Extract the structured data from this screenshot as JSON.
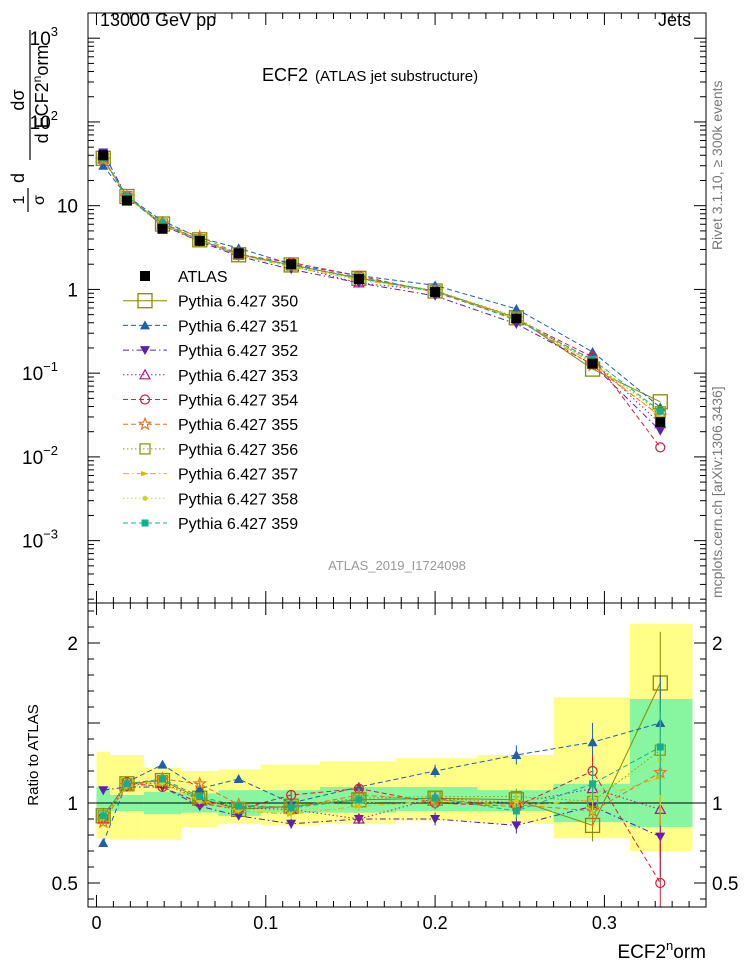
{
  "header": {
    "left": "13000 GeV pp",
    "right": "Jets"
  },
  "side_labels": {
    "rivet": "Rivet 3.1.10, ≥ 300k events",
    "mcplots": "mcplots.cern.ch [arXiv:1306.3436]"
  },
  "chart_data": {
    "type": "scatter",
    "title": "ECF2",
    "subtitle": "(ATLAS jet substructure)",
    "analysis_label": "ATLAS_2019_I1724098",
    "xlabel": "ECF2ⁿorm",
    "ylabel": "1/σ dσ/d ECF2ⁿorm",
    "ratio_ylabel": "Ratio to ATLAS",
    "xlim": [
      -0.005,
      0.36
    ],
    "ylim_main": [
      0.00018,
      2000
    ],
    "ylim_ratio": [
      0.35,
      2.25
    ],
    "yscale_main": "log",
    "x_ticks": [
      "0",
      "0.1",
      "0.2",
      "0.3"
    ],
    "y_ticks_main": [
      "10^-3",
      "10^-2",
      "10^-1",
      "1",
      "10",
      "10^2",
      "10^3"
    ],
    "y_ticks_ratio": [
      "0.5",
      "1",
      "2"
    ],
    "legend_position": "left-middle",
    "bins": [
      [
        0.0,
        0.008
      ],
      [
        0.008,
        0.028
      ],
      [
        0.028,
        0.05
      ],
      [
        0.05,
        0.072
      ],
      [
        0.072,
        0.097
      ],
      [
        0.097,
        0.132
      ],
      [
        0.132,
        0.177
      ],
      [
        0.177,
        0.225
      ],
      [
        0.225,
        0.27
      ],
      [
        0.27,
        0.315
      ],
      [
        0.315,
        0.352
      ]
    ],
    "x": [
      0.004,
      0.018,
      0.039,
      0.061,
      0.084,
      0.115,
      0.155,
      0.2,
      0.248,
      0.293,
      0.333
    ],
    "data": {
      "name": "ATLAS",
      "values": [
        40,
        11.5,
        5.3,
        3.8,
        2.7,
        2.0,
        1.33,
        0.93,
        0.45,
        0.13,
        0.026
      ],
      "ratio_band_inner": [
        [
          0.9,
          1.1
        ],
        [
          0.95,
          1.05
        ],
        [
          0.93,
          1.07
        ],
        [
          0.94,
          1.06
        ],
        [
          0.92,
          1.08
        ],
        [
          0.94,
          1.08
        ],
        [
          0.94,
          1.1
        ],
        [
          0.95,
          1.1
        ],
        [
          0.95,
          1.08
        ],
        [
          0.88,
          1.12
        ],
        [
          0.85,
          1.65
        ]
      ],
      "ratio_band_outer": [
        [
          0.78,
          1.32
        ],
        [
          0.77,
          1.3
        ],
        [
          0.77,
          1.22
        ],
        [
          0.85,
          1.2
        ],
        [
          0.87,
          1.21
        ],
        [
          0.86,
          1.24
        ],
        [
          0.87,
          1.26
        ],
        [
          0.89,
          1.28
        ],
        [
          0.87,
          1.3
        ],
        [
          0.78,
          1.66
        ],
        [
          0.7,
          2.12
        ]
      ]
    },
    "series": [
      {
        "name": "Pythia 6.427 350",
        "color": "#8a8a00",
        "line": "solid",
        "marker": "open-square-large",
        "ratio": [
          0.92,
          1.12,
          1.14,
          1.03,
          0.96,
          0.98,
          1.02,
          1.03,
          1.02,
          0.86,
          1.75
        ],
        "ratio_err": [
          0.05,
          0.03,
          0.03,
          0.03,
          0.03,
          0.03,
          0.03,
          0.04,
          0.05,
          0.1,
          0.32
        ]
      },
      {
        "name": "Pythia 6.427 351",
        "color": "#1f5fb0",
        "line": "dashed",
        "marker": "filled-triangle-up",
        "ratio": [
          0.75,
          1.13,
          1.24,
          1.09,
          1.15,
          1.0,
          1.1,
          1.2,
          1.3,
          1.38,
          1.5
        ],
        "ratio_err": [
          0.02,
          0.02,
          0.02,
          0.02,
          0.02,
          0.03,
          0.03,
          0.04,
          0.06,
          0.12,
          0.3
        ]
      },
      {
        "name": "Pythia 6.427 352",
        "color": "#5a1fb4",
        "line": "dash-dot",
        "marker": "filled-triangle-down",
        "ratio": [
          1.08,
          1.1,
          1.1,
          0.98,
          0.92,
          0.87,
          0.9,
          0.9,
          0.86,
          0.98,
          0.79
        ],
        "ratio_err": [
          0.02,
          0.02,
          0.02,
          0.02,
          0.02,
          0.03,
          0.03,
          0.04,
          0.05,
          0.1,
          0.25
        ]
      },
      {
        "name": "Pythia 6.427 353",
        "color": "#b0188a",
        "line": "dotted",
        "marker": "open-triangle-up",
        "ratio": [
          0.9,
          1.11,
          1.13,
          1.02,
          0.97,
          0.96,
          0.9,
          1.03,
          1.0,
          1.09,
          0.96
        ],
        "ratio_err": [
          0.02,
          0.02,
          0.02,
          0.02,
          0.02,
          0.03,
          0.03,
          0.04,
          0.05,
          0.1,
          0.3
        ]
      },
      {
        "name": "Pythia 6.427 354",
        "color": "#d0203a",
        "line": "dashed",
        "marker": "open-circle",
        "ratio": [
          0.91,
          1.13,
          1.1,
          1.0,
          0.96,
          1.05,
          1.09,
          1.0,
          0.98,
          1.2,
          0.5
        ],
        "ratio_err": [
          0.02,
          0.02,
          0.02,
          0.02,
          0.02,
          0.03,
          0.03,
          0.04,
          0.05,
          0.1,
          0.25
        ]
      },
      {
        "name": "Pythia 6.427 355",
        "color": "#e87015",
        "line": "dashed",
        "marker": "open-star",
        "ratio": [
          0.88,
          1.11,
          1.15,
          1.12,
          0.99,
          0.97,
          1.05,
          1.02,
          0.99,
          0.95,
          1.19
        ],
        "ratio_err": [
          0.02,
          0.02,
          0.02,
          0.02,
          0.02,
          0.03,
          0.03,
          0.04,
          0.05,
          0.1,
          0.3
        ]
      },
      {
        "name": "Pythia 6.427 356",
        "color": "#8a9a10",
        "line": "dotted",
        "marker": "open-square",
        "ratio": [
          0.92,
          1.12,
          1.14,
          1.03,
          0.97,
          0.98,
          1.03,
          1.04,
          1.04,
          1.01,
          1.33
        ],
        "ratio_err": [
          0.02,
          0.02,
          0.02,
          0.02,
          0.02,
          0.03,
          0.03,
          0.04,
          0.05,
          0.1,
          0.3
        ]
      },
      {
        "name": "Pythia 6.427 357",
        "color": "#e0b800",
        "line": "dash-dot",
        "marker": "filled-arrow",
        "ratio": [
          0.9,
          1.1,
          1.12,
          1.02,
          0.95,
          0.93,
          0.98,
          1.01,
          0.98,
          1.02,
          1.16
        ],
        "ratio_err": [
          0.02,
          0.02,
          0.02,
          0.02,
          0.02,
          0.03,
          0.03,
          0.04,
          0.05,
          0.1,
          0.3
        ]
      },
      {
        "name": "Pythia 6.427 358",
        "color": "#c8d820",
        "line": "dotted",
        "marker": "filled-small-circle",
        "ratio": [
          0.91,
          1.11,
          1.13,
          1.01,
          0.96,
          0.95,
          1.0,
          1.02,
          1.01,
          1.05,
          1.27
        ],
        "ratio_err": [
          0.02,
          0.02,
          0.02,
          0.02,
          0.02,
          0.03,
          0.03,
          0.04,
          0.05,
          0.1,
          0.3
        ]
      },
      {
        "name": "Pythia 6.427 359",
        "color": "#10b090",
        "line": "dashed",
        "marker": "filled-square-small",
        "ratio": [
          0.92,
          1.12,
          1.15,
          1.04,
          0.98,
          0.97,
          1.02,
          1.03,
          0.95,
          1.12,
          1.35
        ],
        "ratio_err": [
          0.02,
          0.02,
          0.02,
          0.02,
          0.02,
          0.03,
          0.03,
          0.04,
          0.05,
          0.1,
          0.3
        ]
      }
    ]
  }
}
